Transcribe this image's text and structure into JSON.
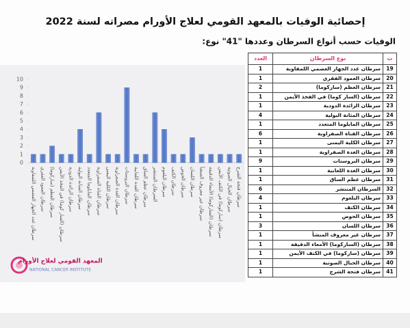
{
  "header": {
    "title": "إحصائية الوفيات بالمعهد القومي لعلاج الأورام مصراته لسنة 2022",
    "subtitle": "الوفيات حسب أنواع السرطان وعددها \"41\" نوع:"
  },
  "table": {
    "headers": [
      "ت",
      "نوع السرطان",
      "العدد"
    ],
    "numbers": [
      19,
      20,
      21,
      22,
      23,
      24,
      25,
      26,
      27,
      28,
      29,
      30,
      31,
      32,
      33,
      34,
      35,
      36,
      37,
      38,
      39,
      40,
      41
    ]
  },
  "logo": {
    "arabic": "المعهد القومي لعلاج الأورام",
    "english": "NATIONAL CANCER INSTITUTE"
  },
  "chart_data": {
    "type": "bar",
    "categories": [
      "سرطان غدد الجهاز العضمي اللمفاوية",
      "سرطان العمود الفقري",
      "سرطان العظم (ساركوما)",
      "سرطان (السار كوما) في الفخذ الأيمن",
      "سرطان الزائدة الدودية",
      "سرطان المثانة البولية",
      "سرطان المايلوما المتعدد",
      "سرطان القناة الصفراوية",
      "سرطان الكلية اليمنى",
      "سرطان الغدة الصفراوية",
      "سرطان البروستات",
      "سرطان الغدة اللعابية",
      "سرطان عظم الساق",
      "السرطان المنتشر",
      "سرطان البلعوم",
      "سرطان الكتف",
      "سرطان الحوض",
      "سرطان اللسان",
      "سرطان غير معروف المنشأ",
      "سرطان (الساركوما) الأمعاء الدقيقة",
      "سرطان (ساركوما) في الكتف الأيمن",
      "سرطان الحبال الصوتية",
      "سرطان فتحة الشرج"
    ],
    "values": [
      1,
      1,
      2,
      1,
      1,
      4,
      1,
      6,
      1,
      1,
      9,
      1,
      1,
      6,
      4,
      1,
      1,
      3,
      1,
      1,
      1,
      1,
      1
    ],
    "color": "#4f74c6",
    "ylim": [
      0,
      10
    ],
    "yticks": [
      0,
      1,
      2,
      3,
      4,
      5,
      6,
      7,
      8,
      9,
      10
    ],
    "grid": false
  }
}
